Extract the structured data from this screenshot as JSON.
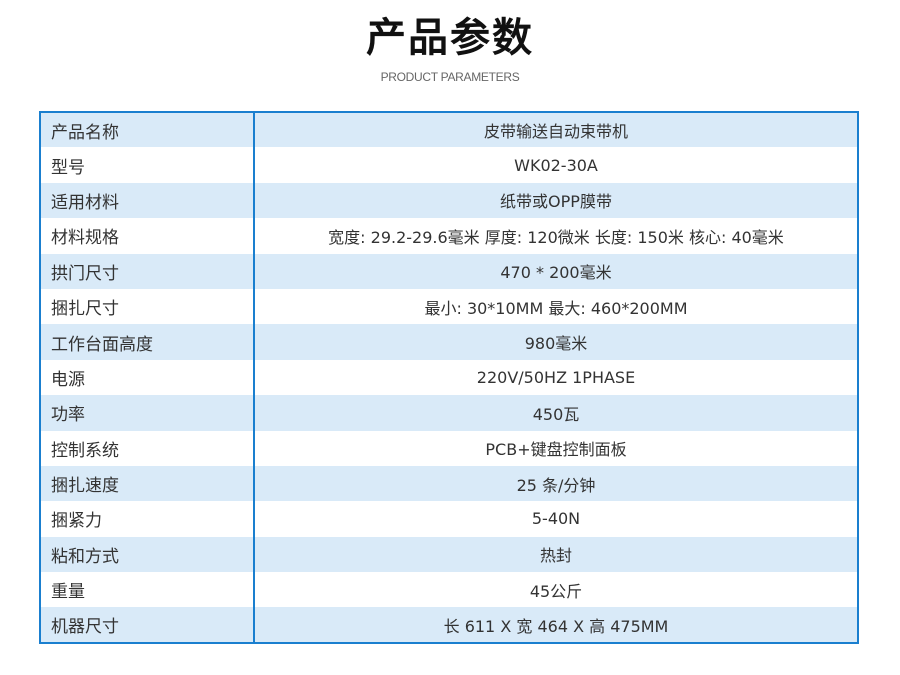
{
  "header": {
    "title": "产品参数",
    "subtitle": "PRODUCT PARAMETERS"
  },
  "colors": {
    "border": "#1a7fcf",
    "row_alt": "#d9eaf8"
  },
  "params": [
    {
      "label": "产品名称",
      "value": "皮带输送自动束带机"
    },
    {
      "label": "型号",
      "value": "WK02-30A"
    },
    {
      "label": "适用材料",
      "value": "纸带或OPP膜带"
    },
    {
      "label": "材料规格",
      "value": "宽度: 29.2-29.6毫米 厚度: 120微米 长度: 150米 核心: 40毫米"
    },
    {
      "label": "拱门尺寸",
      "value": "470 * 200毫米"
    },
    {
      "label": "捆扎尺寸",
      "value": "最小: 30*10MM 最大: 460*200MM"
    },
    {
      "label": "工作台面高度",
      "value": "980毫米"
    },
    {
      "label": "电源",
      "value": "220V/50HZ  1PHASE"
    },
    {
      "label": "功率",
      "value": "450瓦"
    },
    {
      "label": "控制系统",
      "value": "PCB+键盘控制面板"
    },
    {
      "label": "捆扎速度",
      "value": "25 条/分钟"
    },
    {
      "label": "捆紧力",
      "value": "5-40N"
    },
    {
      "label": "粘和方式",
      "value": "热封"
    },
    {
      "label": "重量",
      "value": "45公斤"
    },
    {
      "label": "机器尺寸",
      "value": "长 611 X 宽 464 X 高 475MM"
    }
  ]
}
